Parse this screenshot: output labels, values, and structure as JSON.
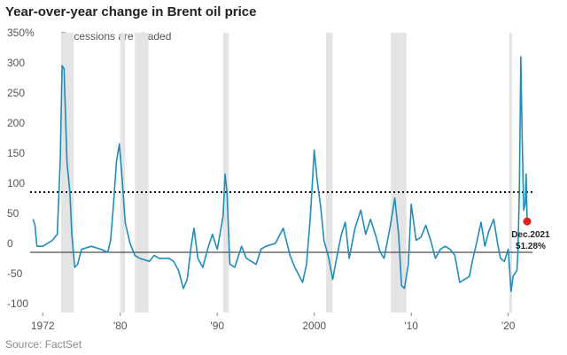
{
  "chart_data": {
    "type": "line",
    "title": "Year-over-year change in Brent oil price",
    "annotation": "Recessions are shaded",
    "source": "Source: FactSet",
    "xlim": [
      1970.7,
      2022.5
    ],
    "ylim": [
      -100,
      350
    ],
    "xticks": [
      1972,
      {
        "value": 1980,
        "label": "'80"
      },
      {
        "value": 1990,
        "label": "'90"
      },
      2000,
      {
        "value": 2010,
        "label": "'10"
      },
      {
        "value": 2020,
        "label": "'20"
      }
    ],
    "yticks": [
      -100,
      -50,
      0,
      50,
      100,
      150,
      200,
      250,
      300,
      {
        "value": 350,
        "label": "350%"
      }
    ],
    "grid": false,
    "reference_line": 100,
    "recessions": [
      [
        1973.9,
        1975.2
      ],
      [
        1980.0,
        1980.5
      ],
      [
        1981.5,
        1982.9
      ],
      [
        1990.6,
        1991.2
      ],
      [
        2001.2,
        2001.9
      ],
      [
        2007.9,
        2009.5
      ],
      [
        2020.1,
        2020.4
      ]
    ],
    "recession_color": "#e4e4e4",
    "series": [
      {
        "name": "Brent",
        "color": "#1f8cb9",
        "x": [
          1971.0,
          1971.2,
          1971.4,
          1972.0,
          1972.5,
          1973.0,
          1973.5,
          1973.8,
          1974.0,
          1974.2,
          1974.5,
          1974.8,
          1975.0,
          1975.3,
          1975.6,
          1976.0,
          1977.0,
          1978.0,
          1978.7,
          1979.0,
          1979.3,
          1979.6,
          1979.9,
          1980.2,
          1980.5,
          1981.0,
          1981.5,
          1982.0,
          1983.0,
          1983.5,
          1984.0,
          1985.0,
          1985.5,
          1986.0,
          1986.5,
          1986.9,
          1987.3,
          1987.6,
          1988.0,
          1988.5,
          1989.0,
          1989.5,
          1990.0,
          1990.6,
          1990.8,
          1991.0,
          1991.3,
          1991.8,
          1992.5,
          1993.0,
          1994.0,
          1994.5,
          1995.0,
          1996.0,
          1996.8,
          1997.5,
          1998.0,
          1998.8,
          1999.2,
          1999.6,
          2000.0,
          2000.3,
          2000.7,
          2001.0,
          2001.5,
          2001.9,
          2002.3,
          2002.8,
          2003.2,
          2003.6,
          2004.2,
          2004.8,
          2005.3,
          2005.8,
          2006.3,
          2006.8,
          2007.2,
          2007.8,
          2008.3,
          2008.7,
          2009.0,
          2009.3,
          2009.7,
          2010.0,
          2010.5,
          2011.0,
          2011.5,
          2012.0,
          2012.5,
          2013.0,
          2013.5,
          2014.0,
          2014.5,
          2015.0,
          2015.5,
          2016.0,
          2016.3,
          2016.8,
          2017.2,
          2017.6,
          2018.0,
          2018.5,
          2018.9,
          2019.2,
          2019.6,
          2020.0,
          2020.3,
          2020.5,
          2020.9,
          2021.0,
          2021.15,
          2021.3,
          2021.45,
          2021.6,
          2021.75,
          2021.85,
          2021.95
        ],
        "values": [
          55,
          45,
          10,
          10,
          15,
          20,
          30,
          150,
          310,
          305,
          150,
          100,
          30,
          -25,
          -20,
          5,
          10,
          5,
          0,
          20,
          80,
          150,
          180,
          120,
          50,
          15,
          -5,
          -10,
          -15,
          -5,
          -10,
          -10,
          -15,
          -30,
          -60,
          -45,
          10,
          40,
          -10,
          -25,
          5,
          30,
          5,
          60,
          130,
          100,
          -20,
          -25,
          10,
          -10,
          -20,
          5,
          10,
          15,
          40,
          -5,
          -25,
          -50,
          -20,
          60,
          170,
          120,
          70,
          20,
          -10,
          -45,
          -10,
          30,
          50,
          -10,
          40,
          70,
          30,
          55,
          30,
          0,
          -10,
          40,
          90,
          30,
          -55,
          -60,
          -20,
          80,
          20,
          25,
          45,
          20,
          -10,
          5,
          10,
          5,
          -5,
          -50,
          -45,
          -40,
          -15,
          20,
          50,
          10,
          35,
          55,
          15,
          -10,
          -15,
          5,
          -65,
          -40,
          -30,
          0,
          100,
          325,
          180,
          70,
          80,
          130,
          51.28
        ]
      }
    ],
    "highlight": {
      "x": 2021.95,
      "value": 51.28,
      "label": "Dec.2021",
      "value_label": "51.28%",
      "color": "#e0201b"
    }
  }
}
